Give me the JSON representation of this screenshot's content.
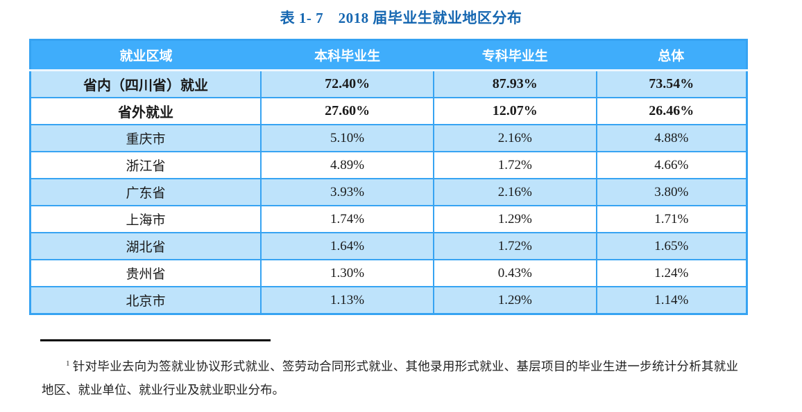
{
  "title": "表 1- 7　2018 届毕业生就业地区分布",
  "table": {
    "headers": [
      "就业区域",
      "本科毕业生",
      "专科毕业生",
      "总体"
    ],
    "rows": [
      {
        "region": "省内（四川省）就业",
        "undergrad": "72.40%",
        "college": "87.93%",
        "overall": "73.54%",
        "bold": true,
        "shaded": true
      },
      {
        "region": "省外就业",
        "undergrad": "27.60%",
        "college": "12.07%",
        "overall": "26.46%",
        "bold": true,
        "shaded": false
      },
      {
        "region": "重庆市",
        "undergrad": "5.10%",
        "college": "2.16%",
        "overall": "4.88%",
        "bold": false,
        "shaded": true
      },
      {
        "region": "浙江省",
        "undergrad": "4.89%",
        "college": "1.72%",
        "overall": "4.66%",
        "bold": false,
        "shaded": false
      },
      {
        "region": "广东省",
        "undergrad": "3.93%",
        "college": "2.16%",
        "overall": "3.80%",
        "bold": false,
        "shaded": true
      },
      {
        "region": "上海市",
        "undergrad": "1.74%",
        "college": "1.29%",
        "overall": "1.71%",
        "bold": false,
        "shaded": false
      },
      {
        "region": "湖北省",
        "undergrad": "1.64%",
        "college": "1.72%",
        "overall": "1.65%",
        "bold": false,
        "shaded": true
      },
      {
        "region": "贵州省",
        "undergrad": "1.30%",
        "college": "0.43%",
        "overall": "1.24%",
        "bold": false,
        "shaded": false
      },
      {
        "region": "北京市",
        "undergrad": "1.13%",
        "college": "1.29%",
        "overall": "1.14%",
        "bold": false,
        "shaded": true
      }
    ]
  },
  "footnote": {
    "marker": "1",
    "text": "针对毕业去向为签就业协议形式就业、签劳动合同形式就业、其他录用形式就业、基层项目的毕业生进一步统计分析其就业地区、就业单位、就业行业及就业职业分布。"
  },
  "colors": {
    "title_blue": "#1667b1",
    "header_bg": "#3fadfb",
    "shaded_row_bg": "#bee3fb",
    "table_border": "#36a3f2",
    "footnote_rule": "#000000"
  }
}
